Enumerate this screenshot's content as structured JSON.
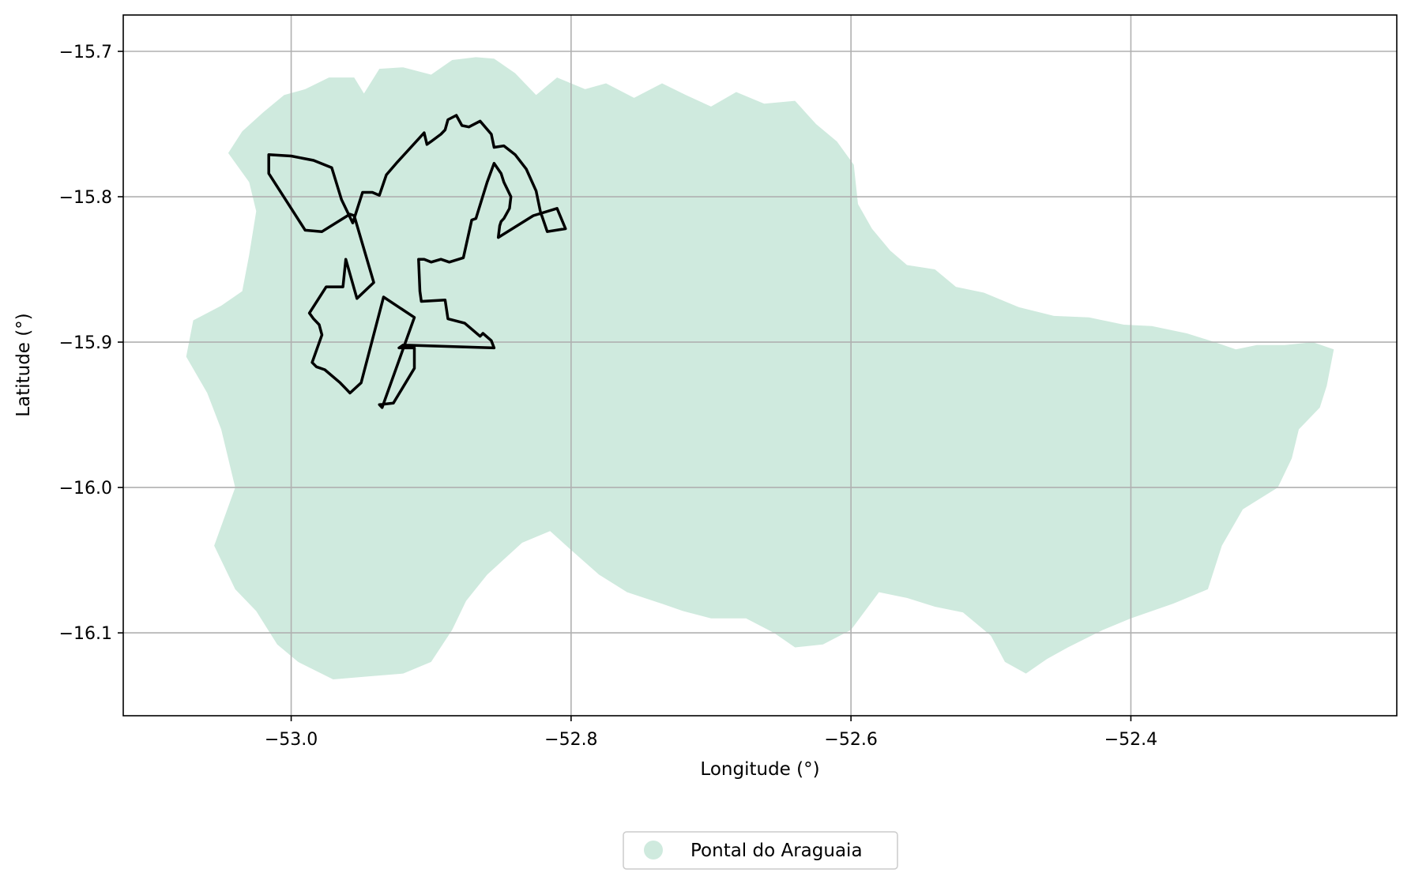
{
  "chart_data": {
    "type": "map",
    "xlabel": "Longitude (°)",
    "ylabel": "Latitude (°)",
    "xlim": [
      -53.12,
      -52.21
    ],
    "ylim": [
      -16.157,
      -15.675
    ],
    "grid": true,
    "x_ticks": [
      {
        "value": -53.0,
        "label": "−53.0"
      },
      {
        "value": -52.8,
        "label": "−52.8"
      },
      {
        "value": -52.6,
        "label": "−52.6"
      },
      {
        "value": -52.4,
        "label": "−52.4"
      }
    ],
    "y_ticks": [
      {
        "value": -15.7,
        "label": "−15.7"
      },
      {
        "value": -15.8,
        "label": "−15.8"
      },
      {
        "value": -15.9,
        "label": "−15.9"
      },
      {
        "value": -16.0,
        "label": "−16.0"
      },
      {
        "value": -16.1,
        "label": "−16.1"
      }
    ],
    "legend": {
      "placement": "bottom-center",
      "entries": [
        {
          "label": "Pontal do Araguaia",
          "color": "#cfeade"
        }
      ]
    },
    "municipality": {
      "name": "Pontal do Araguaia",
      "fill": "#cfeade",
      "boundary": [
        [
          -52.99,
          -15.726
        ],
        [
          -52.973,
          -15.718
        ],
        [
          -52.955,
          -15.718
        ],
        [
          -52.948,
          -15.729
        ],
        [
          -52.937,
          -15.712
        ],
        [
          -52.92,
          -15.711
        ],
        [
          -52.9,
          -15.716
        ],
        [
          -52.885,
          -15.706
        ],
        [
          -52.868,
          -15.704
        ],
        [
          -52.855,
          -15.705
        ],
        [
          -52.84,
          -15.715
        ],
        [
          -52.825,
          -15.73
        ],
        [
          -52.81,
          -15.718
        ],
        [
          -52.79,
          -15.726
        ],
        [
          -52.775,
          -15.722
        ],
        [
          -52.755,
          -15.732
        ],
        [
          -52.735,
          -15.722
        ],
        [
          -52.718,
          -15.73
        ],
        [
          -52.7,
          -15.738
        ],
        [
          -52.682,
          -15.728
        ],
        [
          -52.662,
          -15.736
        ],
        [
          -52.64,
          -15.734
        ],
        [
          -52.625,
          -15.75
        ],
        [
          -52.61,
          -15.762
        ],
        [
          -52.598,
          -15.778
        ],
        [
          -52.595,
          -15.805
        ],
        [
          -52.585,
          -15.822
        ],
        [
          -52.572,
          -15.837
        ],
        [
          -52.56,
          -15.847
        ],
        [
          -52.54,
          -15.85
        ],
        [
          -52.525,
          -15.862
        ],
        [
          -52.505,
          -15.866
        ],
        [
          -52.48,
          -15.876
        ],
        [
          -52.455,
          -15.882
        ],
        [
          -52.43,
          -15.883
        ],
        [
          -52.405,
          -15.888
        ],
        [
          -52.385,
          -15.889
        ],
        [
          -52.36,
          -15.894
        ],
        [
          -52.34,
          -15.9
        ],
        [
          -52.325,
          -15.905
        ],
        [
          -52.31,
          -15.902
        ],
        [
          -52.29,
          -15.902
        ],
        [
          -52.27,
          -15.9
        ],
        [
          -52.255,
          -15.905
        ],
        [
          -52.26,
          -15.93
        ],
        [
          -52.265,
          -15.945
        ],
        [
          -52.28,
          -15.96
        ],
        [
          -52.285,
          -15.98
        ],
        [
          -52.295,
          -16.0
        ],
        [
          -52.32,
          -16.015
        ],
        [
          -52.335,
          -16.04
        ],
        [
          -52.345,
          -16.07
        ],
        [
          -52.37,
          -16.08
        ],
        [
          -52.4,
          -16.09
        ],
        [
          -52.42,
          -16.098
        ],
        [
          -52.445,
          -16.11
        ],
        [
          -52.46,
          -16.118
        ],
        [
          -52.475,
          -16.128
        ],
        [
          -52.49,
          -16.12
        ],
        [
          -52.5,
          -16.102
        ],
        [
          -52.52,
          -16.086
        ],
        [
          -52.54,
          -16.082
        ],
        [
          -52.56,
          -16.076
        ],
        [
          -52.58,
          -16.072
        ],
        [
          -52.6,
          -16.098
        ],
        [
          -52.62,
          -16.108
        ],
        [
          -52.64,
          -16.11
        ],
        [
          -52.655,
          -16.1
        ],
        [
          -52.675,
          -16.09
        ],
        [
          -52.7,
          -16.09
        ],
        [
          -52.72,
          -16.085
        ],
        [
          -52.735,
          -16.08
        ],
        [
          -52.76,
          -16.072
        ],
        [
          -52.78,
          -16.06
        ],
        [
          -52.8,
          -16.043
        ],
        [
          -52.815,
          -16.03
        ],
        [
          -52.835,
          -16.038
        ],
        [
          -52.86,
          -16.06
        ],
        [
          -52.875,
          -16.078
        ],
        [
          -52.885,
          -16.098
        ],
        [
          -52.9,
          -16.12
        ],
        [
          -52.92,
          -16.128
        ],
        [
          -52.945,
          -16.13
        ],
        [
          -52.97,
          -16.132
        ],
        [
          -52.995,
          -16.12
        ],
        [
          -53.01,
          -16.108
        ],
        [
          -53.025,
          -16.085
        ],
        [
          -53.04,
          -16.07
        ],
        [
          -53.055,
          -16.04
        ],
        [
          -53.04,
          -16.0
        ],
        [
          -53.05,
          -15.96
        ],
        [
          -53.06,
          -15.935
        ],
        [
          -53.075,
          -15.91
        ],
        [
          -53.07,
          -15.885
        ],
        [
          -53.05,
          -15.875
        ],
        [
          -53.035,
          -15.865
        ],
        [
          -53.03,
          -15.84
        ],
        [
          -53.025,
          -15.81
        ],
        [
          -53.03,
          -15.79
        ],
        [
          -53.045,
          -15.77
        ],
        [
          -53.035,
          -15.755
        ],
        [
          -53.02,
          -15.742
        ],
        [
          -53.005,
          -15.73
        ]
      ]
    },
    "overlay": {
      "stroke": "#000000",
      "boundary": [
        [
          -53.016,
          -15.771
        ],
        [
          -53.0,
          -15.772
        ],
        [
          -52.984,
          -15.775
        ],
        [
          -52.971,
          -15.78
        ],
        [
          -52.964,
          -15.802
        ],
        [
          -52.956,
          -15.818
        ],
        [
          -52.949,
          -15.797
        ],
        [
          -52.942,
          -15.797
        ],
        [
          -52.937,
          -15.799
        ],
        [
          -52.932,
          -15.785
        ],
        [
          -52.924,
          -15.776
        ],
        [
          -52.905,
          -15.756
        ],
        [
          -52.903,
          -15.764
        ],
        [
          -52.9,
          -15.762
        ],
        [
          -52.893,
          -15.757
        ],
        [
          -52.89,
          -15.754
        ],
        [
          -52.888,
          -15.747
        ],
        [
          -52.882,
          -15.744
        ],
        [
          -52.878,
          -15.751
        ],
        [
          -52.873,
          -15.752
        ],
        [
          -52.865,
          -15.748
        ],
        [
          -52.857,
          -15.757
        ],
        [
          -52.855,
          -15.766
        ],
        [
          -52.848,
          -15.765
        ],
        [
          -52.84,
          -15.771
        ],
        [
          -52.832,
          -15.781
        ],
        [
          -52.825,
          -15.796
        ],
        [
          -52.822,
          -15.81
        ],
        [
          -52.817,
          -15.824
        ],
        [
          -52.804,
          -15.822
        ],
        [
          -52.81,
          -15.808
        ],
        [
          -52.827,
          -15.813
        ],
        [
          -52.852,
          -15.828
        ],
        [
          -52.851,
          -15.82
        ],
        [
          -52.85,
          -15.817
        ],
        [
          -52.848,
          -15.815
        ],
        [
          -52.844,
          -15.808
        ],
        [
          -52.843,
          -15.8
        ],
        [
          -52.846,
          -15.794
        ],
        [
          -52.848,
          -15.79
        ],
        [
          -52.85,
          -15.784
        ],
        [
          -52.855,
          -15.777
        ],
        [
          -52.86,
          -15.79
        ],
        [
          -52.868,
          -15.815
        ],
        [
          -52.871,
          -15.816
        ],
        [
          -52.877,
          -15.842
        ],
        [
          -52.887,
          -15.845
        ],
        [
          -52.893,
          -15.843
        ],
        [
          -52.9,
          -15.845
        ],
        [
          -52.905,
          -15.843
        ],
        [
          -52.909,
          -15.843
        ],
        [
          -52.908,
          -15.865
        ],
        [
          -52.907,
          -15.872
        ],
        [
          -52.89,
          -15.871
        ],
        [
          -52.888,
          -15.884
        ],
        [
          -52.876,
          -15.887
        ],
        [
          -52.865,
          -15.896
        ],
        [
          -52.863,
          -15.894
        ],
        [
          -52.857,
          -15.899
        ],
        [
          -52.855,
          -15.904
        ],
        [
          -52.92,
          -15.902
        ],
        [
          -52.923,
          -15.904
        ],
        [
          -52.912,
          -15.904
        ],
        [
          -52.912,
          -15.918
        ],
        [
          -52.927,
          -15.942
        ],
        [
          -52.937,
          -15.943
        ],
        [
          -52.935,
          -15.945
        ],
        [
          -52.912,
          -15.883
        ],
        [
          -52.934,
          -15.869
        ],
        [
          -52.95,
          -15.928
        ],
        [
          -52.958,
          -15.935
        ],
        [
          -52.961,
          -15.932
        ],
        [
          -52.965,
          -15.928
        ],
        [
          -52.976,
          -15.919
        ],
        [
          -52.982,
          -15.917
        ],
        [
          -52.985,
          -15.914
        ],
        [
          -52.978,
          -15.895
        ],
        [
          -52.98,
          -15.888
        ],
        [
          -52.984,
          -15.884
        ],
        [
          -52.987,
          -15.88
        ],
        [
          -52.975,
          -15.862
        ],
        [
          -52.963,
          -15.862
        ],
        [
          -52.961,
          -15.843
        ],
        [
          -52.953,
          -15.87
        ],
        [
          -52.941,
          -15.859
        ],
        [
          -52.955,
          -15.813
        ],
        [
          -52.958,
          -15.812
        ],
        [
          -52.963,
          -15.815
        ],
        [
          -52.978,
          -15.824
        ],
        [
          -52.99,
          -15.823
        ],
        [
          -53.016,
          -15.784
        ]
      ]
    }
  }
}
